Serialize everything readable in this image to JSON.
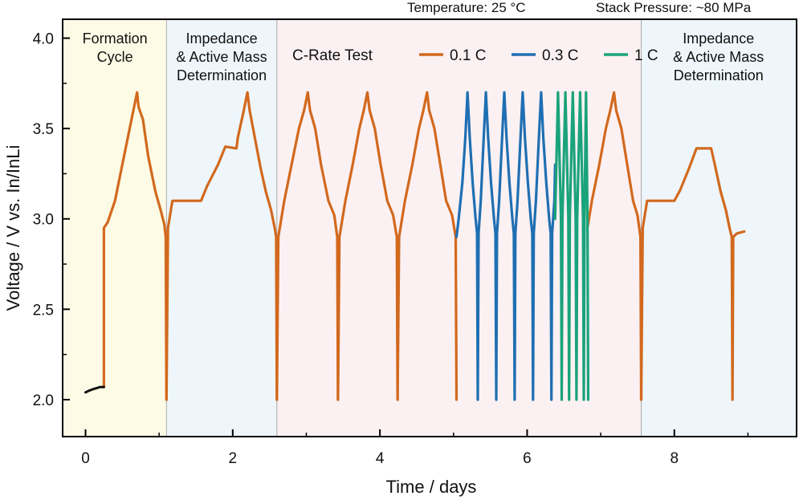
{
  "chart_data": {
    "type": "line",
    "xlabel": "Time / days",
    "ylabel": "Voltage / V vs. In/InLi",
    "xlim": [
      -0.3,
      9.65
    ],
    "ylim": [
      1.8,
      4.1
    ],
    "xticks": [
      0,
      2,
      4,
      6,
      8
    ],
    "yticks": [
      2.0,
      2.5,
      3.0,
      3.5,
      4.0
    ],
    "xtick_labels": [
      "0",
      "2",
      "4",
      "6",
      "8"
    ],
    "ytick_labels": [
      "2.0",
      "2.5",
      "3.0",
      "3.5",
      "4.0"
    ],
    "header_notes": [
      "Temperature: 25 °C",
      "Stack Pressure: ~80 MPa"
    ],
    "legend": {
      "title": "C-Rate Test",
      "placement": "top-center"
    },
    "regions": [
      {
        "label_lines": [
          "Formation",
          "Cycle"
        ],
        "x": [
          -0.3,
          1.1
        ],
        "color": "#fdfbe6"
      },
      {
        "label_lines": [
          "Impedance",
          "& Active Mass",
          "Determination"
        ],
        "x": [
          1.1,
          2.6
        ],
        "color": "#eef6fb"
      },
      {
        "label_lines": [],
        "x": [
          2.6,
          7.55
        ],
        "color": "#fbf1f3"
      },
      {
        "label_lines": [
          "Impedance",
          "& Active Mass",
          "Determination"
        ],
        "x": [
          7.55,
          9.65
        ],
        "color": "#eef6fb"
      }
    ],
    "series": [
      {
        "name": "0.1 C",
        "color": "#d2691e",
        "segments": [
          [
            [
              0.25,
              2.07
            ],
            [
              0.25,
              2.95
            ],
            [
              0.3,
              2.98
            ],
            [
              0.4,
              3.1
            ],
            [
              0.5,
              3.3
            ],
            [
              0.6,
              3.5
            ],
            [
              0.65,
              3.6
            ],
            [
              0.7,
              3.7
            ],
            [
              0.72,
              3.62
            ],
            [
              0.78,
              3.55
            ],
            [
              0.85,
              3.35
            ],
            [
              0.95,
              3.15
            ],
            [
              1.02,
              3.05
            ],
            [
              1.07,
              2.97
            ],
            [
              1.09,
              2.9
            ],
            [
              1.1,
              2.0
            ]
          ],
          [
            [
              1.1,
              2.0
            ],
            [
              1.12,
              2.95
            ],
            [
              1.18,
              3.1
            ],
            [
              1.5,
              3.1
            ],
            [
              1.57,
              3.1
            ],
            [
              1.65,
              3.18
            ],
            [
              1.8,
              3.3
            ],
            [
              1.9,
              3.4
            ],
            [
              2.05,
              3.39
            ],
            [
              2.07,
              3.45
            ],
            [
              2.15,
              3.6
            ],
            [
              2.2,
              3.7
            ],
            [
              2.23,
              3.6
            ],
            [
              2.3,
              3.45
            ],
            [
              2.38,
              3.28
            ],
            [
              2.45,
              3.15
            ],
            [
              2.52,
              3.05
            ],
            [
              2.57,
              2.95
            ],
            [
              2.59,
              2.9
            ],
            [
              2.6,
              2.0
            ]
          ],
          [
            [
              2.6,
              2.0
            ],
            [
              2.62,
              2.9
            ],
            [
              2.7,
              3.1
            ],
            [
              2.8,
              3.3
            ],
            [
              2.9,
              3.5
            ],
            [
              2.97,
              3.6
            ],
            [
              3.02,
              3.7
            ],
            [
              3.05,
              3.6
            ],
            [
              3.12,
              3.5
            ],
            [
              3.2,
              3.3
            ],
            [
              3.3,
              3.1
            ],
            [
              3.38,
              3.02
            ],
            [
              3.42,
              2.9
            ],
            [
              3.43,
              2.0
            ]
          ],
          [
            [
              3.43,
              2.0
            ],
            [
              3.45,
              2.9
            ],
            [
              3.53,
              3.1
            ],
            [
              3.63,
              3.3
            ],
            [
              3.72,
              3.5
            ],
            [
              3.78,
              3.6
            ],
            [
              3.83,
              3.7
            ],
            [
              3.86,
              3.6
            ],
            [
              3.93,
              3.5
            ],
            [
              4.01,
              3.3
            ],
            [
              4.1,
              3.1
            ],
            [
              4.18,
              3.02
            ],
            [
              4.23,
              2.9
            ],
            [
              4.24,
              2.0
            ]
          ],
          [
            [
              4.24,
              2.0
            ],
            [
              4.26,
              2.9
            ],
            [
              4.34,
              3.1
            ],
            [
              4.44,
              3.3
            ],
            [
              4.53,
              3.5
            ],
            [
              4.59,
              3.6
            ],
            [
              4.64,
              3.7
            ],
            [
              4.67,
              3.6
            ],
            [
              4.74,
              3.5
            ],
            [
              4.82,
              3.3
            ],
            [
              4.9,
              3.1
            ],
            [
              4.98,
              3.02
            ],
            [
              5.03,
              2.9
            ],
            [
              5.04,
              2.0
            ]
          ],
          [
            [
              6.82,
              2.95
            ],
            [
              6.88,
              3.1
            ],
            [
              6.98,
              3.3
            ],
            [
              7.07,
              3.5
            ],
            [
              7.13,
              3.6
            ],
            [
              7.18,
              3.7
            ],
            [
              7.21,
              3.6
            ],
            [
              7.28,
              3.5
            ],
            [
              7.36,
              3.3
            ],
            [
              7.44,
              3.1
            ],
            [
              7.5,
              3.02
            ],
            [
              7.54,
              2.9
            ],
            [
              7.55,
              2.0
            ]
          ],
          [
            [
              7.55,
              2.0
            ],
            [
              7.57,
              2.95
            ],
            [
              7.63,
              3.1
            ],
            [
              7.95,
              3.1
            ],
            [
              8.0,
              3.1
            ],
            [
              8.08,
              3.16
            ],
            [
              8.2,
              3.28
            ],
            [
              8.3,
              3.39
            ],
            [
              8.5,
              3.39
            ],
            [
              8.55,
              3.3
            ],
            [
              8.63,
              3.15
            ],
            [
              8.7,
              3.05
            ],
            [
              8.75,
              2.95
            ],
            [
              8.78,
              2.9
            ],
            [
              8.79,
              2.0
            ],
            [
              8.8,
              2.9
            ],
            [
              8.85,
              2.92
            ],
            [
              8.95,
              2.93
            ]
          ]
        ]
      },
      {
        "name": "0.3 C",
        "color": "#1f6fb2",
        "segments": [
          [
            [
              5.04,
              2.9
            ],
            [
              5.07,
              3.0
            ],
            [
              5.12,
              3.2
            ],
            [
              5.16,
              3.45
            ],
            [
              5.19,
              3.7
            ],
            [
              5.22,
              3.45
            ],
            [
              5.26,
              3.2
            ],
            [
              5.3,
              3.0
            ],
            [
              5.32,
              2.92
            ],
            [
              5.33,
              2.0
            ],
            [
              5.34,
              2.92
            ],
            [
              5.37,
              3.1
            ],
            [
              5.41,
              3.45
            ],
            [
              5.44,
              3.7
            ],
            [
              5.47,
              3.45
            ],
            [
              5.51,
              3.2
            ],
            [
              5.55,
              3.0
            ],
            [
              5.57,
              2.92
            ],
            [
              5.58,
              2.0
            ],
            [
              5.59,
              2.92
            ],
            [
              5.62,
              3.1
            ],
            [
              5.66,
              3.45
            ],
            [
              5.69,
              3.7
            ],
            [
              5.72,
              3.45
            ],
            [
              5.76,
              3.2
            ],
            [
              5.8,
              3.0
            ],
            [
              5.82,
              2.92
            ],
            [
              5.83,
              2.0
            ],
            [
              5.84,
              2.92
            ],
            [
              5.87,
              3.1
            ],
            [
              5.91,
              3.45
            ],
            [
              5.94,
              3.7
            ],
            [
              5.97,
              3.45
            ],
            [
              6.01,
              3.2
            ],
            [
              6.05,
              3.0
            ],
            [
              6.07,
              2.92
            ],
            [
              6.08,
              2.0
            ],
            [
              6.09,
              2.92
            ],
            [
              6.12,
              3.1
            ],
            [
              6.16,
              3.45
            ],
            [
              6.19,
              3.7
            ],
            [
              6.22,
              3.45
            ],
            [
              6.26,
              3.2
            ],
            [
              6.3,
              3.0
            ],
            [
              6.32,
              2.92
            ],
            [
              6.33,
              2.0
            ],
            [
              6.34,
              2.92
            ],
            [
              6.37,
              3.1
            ],
            [
              6.38,
              3.3
            ]
          ]
        ]
      },
      {
        "name": "1 C",
        "color": "#1aa37a",
        "segments": [
          [
            [
              6.38,
              3.0
            ],
            [
              6.42,
              3.7
            ],
            [
              6.46,
              3.0
            ],
            [
              6.47,
              2.0
            ],
            [
              6.48,
              3.0
            ],
            [
              6.52,
              3.7
            ],
            [
              6.56,
              3.0
            ],
            [
              6.57,
              2.0
            ],
            [
              6.58,
              3.0
            ],
            [
              6.62,
              3.7
            ],
            [
              6.66,
              3.0
            ],
            [
              6.67,
              2.0
            ],
            [
              6.68,
              3.0
            ],
            [
              6.72,
              3.7
            ],
            [
              6.76,
              3.0
            ],
            [
              6.77,
              2.0
            ],
            [
              6.78,
              3.0
            ],
            [
              6.8,
              3.7
            ],
            [
              6.82,
              3.0
            ],
            [
              6.83,
              2.0
            ]
          ]
        ]
      },
      {
        "name": "",
        "color": "#111111",
        "segments": [
          [
            [
              0.0,
              2.04
            ],
            [
              0.05,
              2.05
            ],
            [
              0.12,
              2.06
            ],
            [
              0.2,
              2.07
            ],
            [
              0.25,
              2.07
            ]
          ]
        ]
      }
    ]
  }
}
